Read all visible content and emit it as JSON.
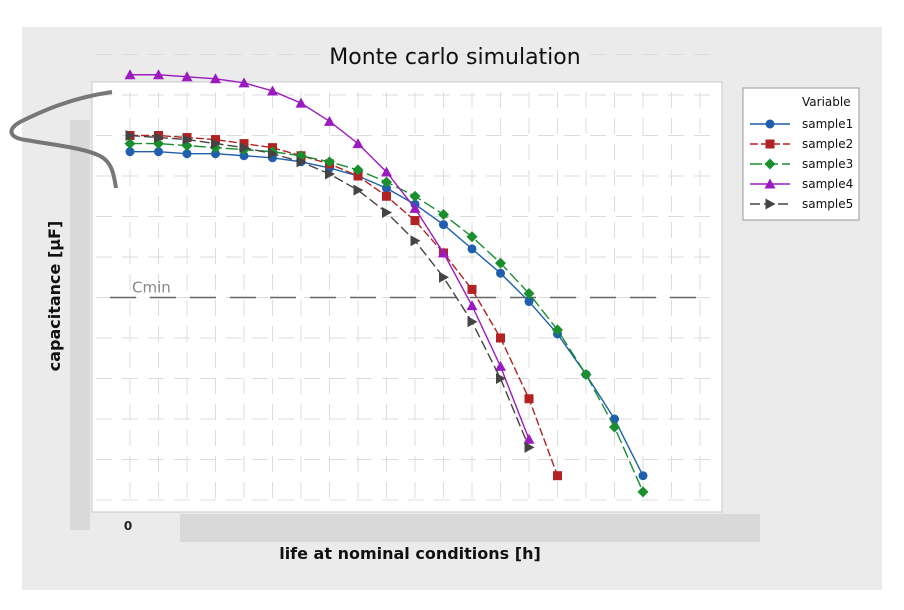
{
  "chart_data": {
    "type": "line",
    "title": "Monte carlo simulation",
    "xlabel": "life at nominal conditions [h]",
    "ylabel": "capacitance [μF]",
    "x_ticks": [
      "0"
    ],
    "xlim": [
      0,
      20
    ],
    "ylim": [
      0,
      10
    ],
    "grid": true,
    "legend": {
      "title": "Variable",
      "position": "right"
    },
    "threshold": {
      "label": "Cmin",
      "y": 5
    },
    "series": [
      {
        "name": "sample1",
        "color": "#1f5fae",
        "marker": "circle",
        "dash": "solid",
        "points": [
          [
            0,
            8.6
          ],
          [
            1,
            8.6
          ],
          [
            2,
            8.55
          ],
          [
            3,
            8.55
          ],
          [
            4,
            8.5
          ],
          [
            5,
            8.45
          ],
          [
            6,
            8.35
          ],
          [
            7,
            8.2
          ],
          [
            8,
            8.0
          ],
          [
            9,
            7.7
          ],
          [
            10,
            7.3
          ],
          [
            11,
            6.8
          ],
          [
            12,
            6.2
          ],
          [
            13,
            5.6
          ],
          [
            14,
            4.9
          ],
          [
            15,
            4.1
          ],
          [
            16,
            3.1
          ],
          [
            17,
            2.0
          ],
          [
            18,
            0.6
          ]
        ]
      },
      {
        "name": "sample2",
        "color": "#b22222",
        "marker": "square",
        "dash": "8,3",
        "points": [
          [
            0,
            9.0
          ],
          [
            1,
            9.0
          ],
          [
            2,
            8.95
          ],
          [
            3,
            8.9
          ],
          [
            4,
            8.8
          ],
          [
            5,
            8.7
          ],
          [
            6,
            8.5
          ],
          [
            7,
            8.3
          ],
          [
            8,
            8.0
          ],
          [
            9,
            7.5
          ],
          [
            10,
            6.9
          ],
          [
            11,
            6.1
          ],
          [
            12,
            5.2
          ],
          [
            13,
            4.0
          ],
          [
            14,
            2.5
          ],
          [
            15,
            0.6
          ]
        ]
      },
      {
        "name": "sample3",
        "color": "#1a8f2e",
        "marker": "diamond",
        "dash": "12,4",
        "points": [
          [
            0,
            8.8
          ],
          [
            1,
            8.8
          ],
          [
            2,
            8.75
          ],
          [
            3,
            8.7
          ],
          [
            4,
            8.65
          ],
          [
            5,
            8.6
          ],
          [
            6,
            8.5
          ],
          [
            7,
            8.35
          ],
          [
            8,
            8.15
          ],
          [
            9,
            7.85
          ],
          [
            10,
            7.5
          ],
          [
            11,
            7.05
          ],
          [
            12,
            6.5
          ],
          [
            13,
            5.85
          ],
          [
            14,
            5.1
          ],
          [
            15,
            4.2
          ],
          [
            16,
            3.1
          ],
          [
            17,
            1.8
          ],
          [
            18,
            0.2
          ]
        ]
      },
      {
        "name": "sample4",
        "color": "#9b1bc0",
        "marker": "triangle-up",
        "dash": "solid",
        "points": [
          [
            0,
            10.5
          ],
          [
            1,
            10.5
          ],
          [
            2,
            10.45
          ],
          [
            3,
            10.4
          ],
          [
            4,
            10.3
          ],
          [
            5,
            10.1
          ],
          [
            6,
            9.8
          ],
          [
            7,
            9.35
          ],
          [
            8,
            8.8
          ],
          [
            9,
            8.1
          ],
          [
            10,
            7.2
          ],
          [
            11,
            6.1
          ],
          [
            12,
            4.8
          ],
          [
            13,
            3.3
          ],
          [
            14,
            1.5
          ]
        ]
      },
      {
        "name": "sample5",
        "color": "#444444",
        "marker": "triangle-right",
        "dash": "10,4",
        "points": [
          [
            0,
            9.0
          ],
          [
            1,
            8.95
          ],
          [
            2,
            8.9
          ],
          [
            3,
            8.8
          ],
          [
            4,
            8.7
          ],
          [
            5,
            8.55
          ],
          [
            6,
            8.35
          ],
          [
            7,
            8.05
          ],
          [
            8,
            7.65
          ],
          [
            9,
            7.1
          ],
          [
            10,
            6.4
          ],
          [
            11,
            5.5
          ],
          [
            12,
            4.4
          ],
          [
            13,
            3.0
          ],
          [
            14,
            1.3
          ]
        ]
      }
    ]
  }
}
